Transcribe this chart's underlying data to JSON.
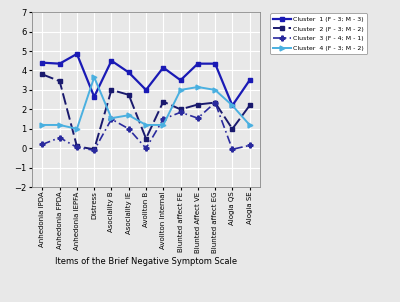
{
  "x_labels": [
    "Anhedonia IPDA",
    "Anhedonia FPDA",
    "Anhedonia IEPFA",
    "Distress",
    "Asociality B",
    "Asociality IE",
    "Avoliton B",
    "Avoliton Internal",
    "Blunted affect FE",
    "Blunted Affect VE",
    "Blunted affect EG",
    "Alogia QS",
    "Alogia SE"
  ],
  "cluster1": [
    4.4,
    4.35,
    4.85,
    2.65,
    4.5,
    3.9,
    3.0,
    4.15,
    3.5,
    4.35,
    4.35,
    2.2,
    3.5
  ],
  "cluster2": [
    3.8,
    3.45,
    0.1,
    -0.05,
    3.0,
    2.75,
    0.5,
    2.4,
    2.0,
    2.25,
    2.35,
    1.0,
    2.2
  ],
  "cluster3": [
    0.2,
    0.55,
    0.05,
    -0.1,
    1.5,
    1.0,
    0.0,
    1.5,
    1.85,
    1.55,
    2.35,
    -0.05,
    0.15
  ],
  "cluster4": [
    1.2,
    1.2,
    1.0,
    3.65,
    1.55,
    1.7,
    1.2,
    1.2,
    3.0,
    3.15,
    3.0,
    2.2,
    1.2
  ],
  "cluster1_color": "#1a1ab5",
  "cluster2_color": "#1a1a6e",
  "cluster3_color": "#2a2a9e",
  "cluster4_color": "#4ab0e0",
  "ylim": [
    -2,
    7
  ],
  "yticks": [
    -2,
    -1,
    0,
    1,
    2,
    3,
    4,
    5,
    6,
    7
  ],
  "xlabel": "Items of the Brief Negative Symptom Scale",
  "legend_labels": [
    "Cluster  1 (F - 3; M - 3)",
    "Cluster  2 (F - 3; M - 2)",
    "Cluster  3 (F - 4; M - 1)",
    "Cluster  4 (F - 3; M - 2)"
  ],
  "bg_color": "#e8e8e8",
  "grid_color": "#ffffff"
}
